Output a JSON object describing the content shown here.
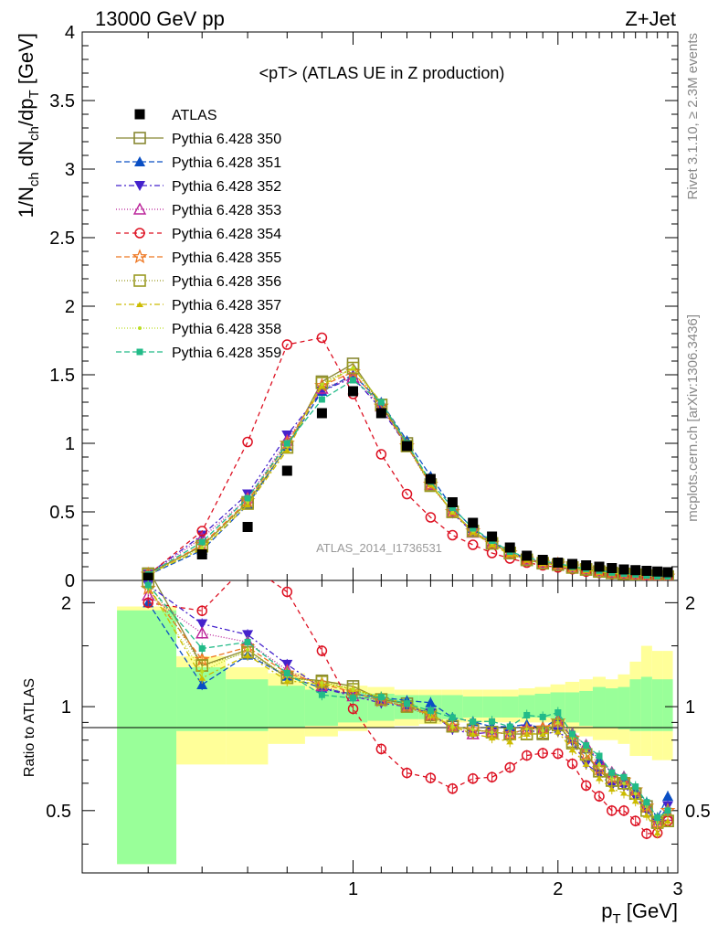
{
  "header": {
    "left": "13000 GeV pp",
    "right": "Z+Jet"
  },
  "side_text": {
    "rivet": "Rivet 3.1.10, ≥ 2.3M events",
    "mcplots": "mcplots.cern.ch [arXiv:1306.3436]"
  },
  "chart_data": {
    "type": "line",
    "title": "<pT> (ATLAS UE in Z production)",
    "xlabel": "p_T [GeV]",
    "ylabel": "1/N_ch dN_ch/dp_T [GeV]",
    "ratio_ylabel": "Ratio to ATLAS",
    "watermark": "ATLAS_2014_I1736531",
    "x_scale": "log",
    "xlim": [
      0.4,
      3.0
    ],
    "ylim": [
      0,
      4
    ],
    "ratio_ylim": [
      0.33,
      2.32
    ],
    "x_ticks": [
      1,
      2,
      3
    ],
    "y_ticks": [
      0,
      0.5,
      1,
      1.5,
      2,
      2.5,
      3,
      3.5,
      4
    ],
    "ratio_y_ticks": [
      0.5,
      1,
      2
    ],
    "legend_position": "top-left",
    "x": [
      0.5,
      0.6,
      0.7,
      0.8,
      0.9,
      1.0,
      1.1,
      1.2,
      1.3,
      1.4,
      1.5,
      1.6,
      1.7,
      1.8,
      1.9,
      2.0,
      2.1,
      2.2,
      2.3,
      2.4,
      2.5,
      2.6,
      2.7,
      2.8,
      2.9
    ],
    "data": {
      "name": "ATLAS",
      "values": [
        0.02,
        0.19,
        0.39,
        0.8,
        1.22,
        1.38,
        1.22,
        0.98,
        0.74,
        0.57,
        0.42,
        0.32,
        0.24,
        0.18,
        0.15,
        0.13,
        0.12,
        0.11,
        0.1,
        0.09,
        0.08,
        0.075,
        0.07,
        0.065,
        0.06
      ]
    },
    "band": {
      "inner_lo": [
        0.35,
        0.85,
        0.85,
        0.87,
        0.88,
        0.9,
        0.91,
        0.92,
        0.92,
        0.92,
        0.93,
        0.93,
        0.93,
        0.93,
        0.93,
        0.92,
        0.9,
        0.88,
        0.87,
        0.87,
        0.86,
        0.85,
        0.85,
        0.85,
        0.85
      ],
      "inner_hi": [
        1.9,
        1.3,
        1.2,
        1.15,
        1.12,
        1.1,
        1.09,
        1.08,
        1.08,
        1.08,
        1.07,
        1.07,
        1.07,
        1.08,
        1.09,
        1.1,
        1.1,
        1.11,
        1.14,
        1.13,
        1.14,
        1.2,
        1.22,
        1.2,
        1.2
      ],
      "outer_lo": [
        0.35,
        0.68,
        0.68,
        0.78,
        0.82,
        0.85,
        0.87,
        0.88,
        0.89,
        0.9,
        0.9,
        0.9,
        0.9,
        0.9,
        0.9,
        0.87,
        0.84,
        0.82,
        0.8,
        0.8,
        0.78,
        0.72,
        0.72,
        0.7,
        0.7
      ],
      "outer_hi": [
        1.95,
        1.4,
        1.3,
        1.25,
        1.18,
        1.15,
        1.14,
        1.12,
        1.12,
        1.12,
        1.12,
        1.12,
        1.12,
        1.13,
        1.14,
        1.16,
        1.18,
        1.2,
        1.22,
        1.2,
        1.24,
        1.35,
        1.5,
        1.45,
        1.45
      ]
    },
    "series": [
      {
        "name": "Pythia 6.428 350",
        "color": "#888833",
        "marker": "square-open",
        "dash": "solid",
        "values": [
          0.05,
          0.25,
          0.57,
          0.97,
          1.45,
          1.58,
          1.28,
          1.0,
          0.7,
          0.5,
          0.36,
          0.27,
          0.2,
          0.15,
          0.125,
          0.115,
          0.095,
          0.08,
          0.065,
          0.055,
          0.048,
          0.042,
          0.036,
          0.03,
          0.028
        ]
      },
      {
        "name": "Pythia 6.428 351",
        "color": "#0a4fc4",
        "marker": "triangle-up",
        "dash": "6,3",
        "values": [
          0.04,
          0.22,
          0.55,
          0.98,
          1.38,
          1.5,
          1.3,
          1.02,
          0.76,
          0.53,
          0.38,
          0.28,
          0.21,
          0.16,
          0.13,
          0.12,
          0.097,
          0.083,
          0.07,
          0.058,
          0.05,
          0.043,
          0.037,
          0.031,
          0.033
        ]
      },
      {
        "name": "Pythia 6.428 352",
        "color": "#4422cc",
        "marker": "triangle-down",
        "dash": "6,3,2,3",
        "values": [
          0.045,
          0.33,
          0.63,
          1.06,
          1.38,
          1.48,
          1.25,
          0.98,
          0.71,
          0.49,
          0.35,
          0.27,
          0.2,
          0.155,
          0.125,
          0.11,
          0.095,
          0.075,
          0.064,
          0.053,
          0.047,
          0.041,
          0.035,
          0.03,
          0.031
        ]
      },
      {
        "name": "Pythia 6.428 353",
        "color": "#bb2299",
        "marker": "triangle-up-open",
        "dash": "1,2",
        "values": [
          0.042,
          0.31,
          0.6,
          1.02,
          1.4,
          1.48,
          1.27,
          0.98,
          0.7,
          0.5,
          0.35,
          0.27,
          0.2,
          0.155,
          0.13,
          0.118,
          0.1,
          0.085,
          0.07,
          0.058,
          0.05,
          0.043,
          0.036,
          0.03,
          0.029
        ]
      },
      {
        "name": "Pythia 6.428 354",
        "color": "#dd1122",
        "marker": "circle-open",
        "dash": "5,4",
        "values": [
          0.04,
          0.36,
          1.01,
          1.72,
          1.77,
          1.36,
          0.92,
          0.63,
          0.46,
          0.33,
          0.26,
          0.2,
          0.16,
          0.13,
          0.11,
          0.095,
          0.082,
          0.065,
          0.055,
          0.045,
          0.04,
          0.035,
          0.03,
          0.028,
          0.028
        ]
      },
      {
        "name": "Pythia 6.428 355",
        "color": "#ee7722",
        "marker": "star-open",
        "dash": "6,3",
        "values": [
          0.044,
          0.26,
          0.58,
          1.0,
          1.42,
          1.52,
          1.27,
          0.98,
          0.7,
          0.5,
          0.36,
          0.27,
          0.2,
          0.155,
          0.13,
          0.118,
          0.097,
          0.08,
          0.066,
          0.056,
          0.049,
          0.043,
          0.036,
          0.03,
          0.03
        ]
      },
      {
        "name": "Pythia 6.428 356",
        "color": "#999922",
        "marker": "square-open",
        "dash": "1,2",
        "values": [
          0.046,
          0.25,
          0.56,
          0.97,
          1.44,
          1.55,
          1.28,
          0.98,
          0.69,
          0.5,
          0.36,
          0.27,
          0.2,
          0.15,
          0.126,
          0.115,
          0.094,
          0.08,
          0.065,
          0.055,
          0.048,
          0.042,
          0.035,
          0.03,
          0.028
        ]
      },
      {
        "name": "Pythia 6.428 357",
        "color": "#ccbb00",
        "marker": "tri-small",
        "dash": "6,3,2,3",
        "values": [
          0.045,
          0.23,
          0.55,
          0.95,
          1.42,
          1.55,
          1.3,
          1.0,
          0.7,
          0.5,
          0.35,
          0.26,
          0.19,
          0.15,
          0.125,
          0.11,
          0.09,
          0.075,
          0.062,
          0.052,
          0.045,
          0.04,
          0.034,
          0.028,
          0.028
        ]
      },
      {
        "name": "Pythia 6.428 358",
        "color": "#bbdd22",
        "marker": "dot",
        "dash": "1,2",
        "values": [
          0.044,
          0.24,
          0.57,
          0.98,
          1.43,
          1.55,
          1.3,
          1.0,
          0.71,
          0.5,
          0.36,
          0.27,
          0.2,
          0.155,
          0.128,
          0.117,
          0.097,
          0.082,
          0.068,
          0.056,
          0.048,
          0.042,
          0.036,
          0.03,
          0.03
        ]
      },
      {
        "name": "Pythia 6.428 359",
        "color": "#22bb88",
        "marker": "square-small",
        "dash": "6,3",
        "values": [
          0.045,
          0.28,
          0.6,
          1.0,
          1.32,
          1.46,
          1.3,
          1.0,
          0.72,
          0.53,
          0.38,
          0.29,
          0.21,
          0.17,
          0.14,
          0.125,
          0.1,
          0.085,
          0.072,
          0.058,
          0.05,
          0.044,
          0.037,
          0.031,
          0.03
        ]
      }
    ]
  }
}
